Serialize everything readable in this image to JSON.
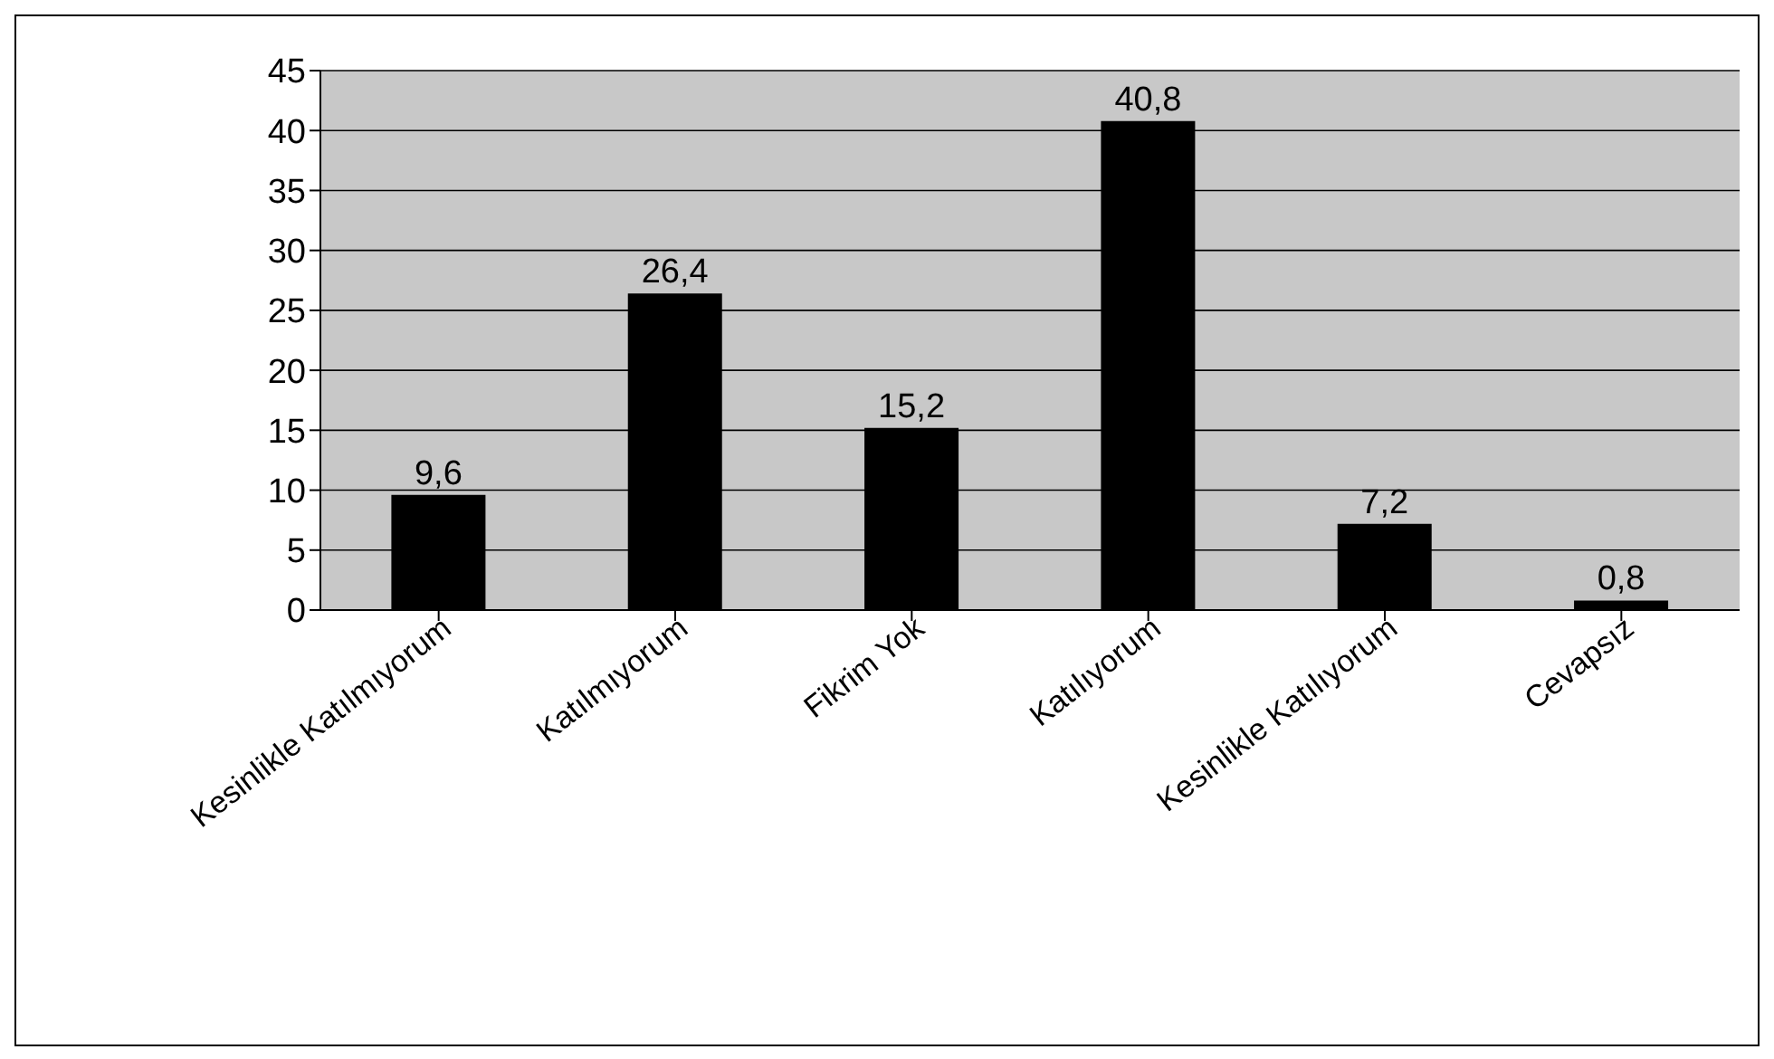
{
  "chart_data": {
    "type": "bar",
    "categories": [
      "Kesinlikle Katılmıyorum",
      "Katılmıyorum",
      "Fikrim Yok",
      "Katılıyorum",
      "Kesinlikle Katılıyorum",
      "Cevapsız"
    ],
    "values": [
      9.6,
      26.4,
      15.2,
      40.8,
      7.2,
      0.8
    ],
    "value_labels": [
      "9,6",
      "26,4",
      "15,2",
      "40,8",
      "7,2",
      "0,8"
    ],
    "color": "#000000",
    "ylim": [
      0,
      45
    ],
    "yticks": [
      0,
      5,
      10,
      15,
      20,
      25,
      30,
      35,
      40,
      45
    ],
    "grid": "y"
  }
}
